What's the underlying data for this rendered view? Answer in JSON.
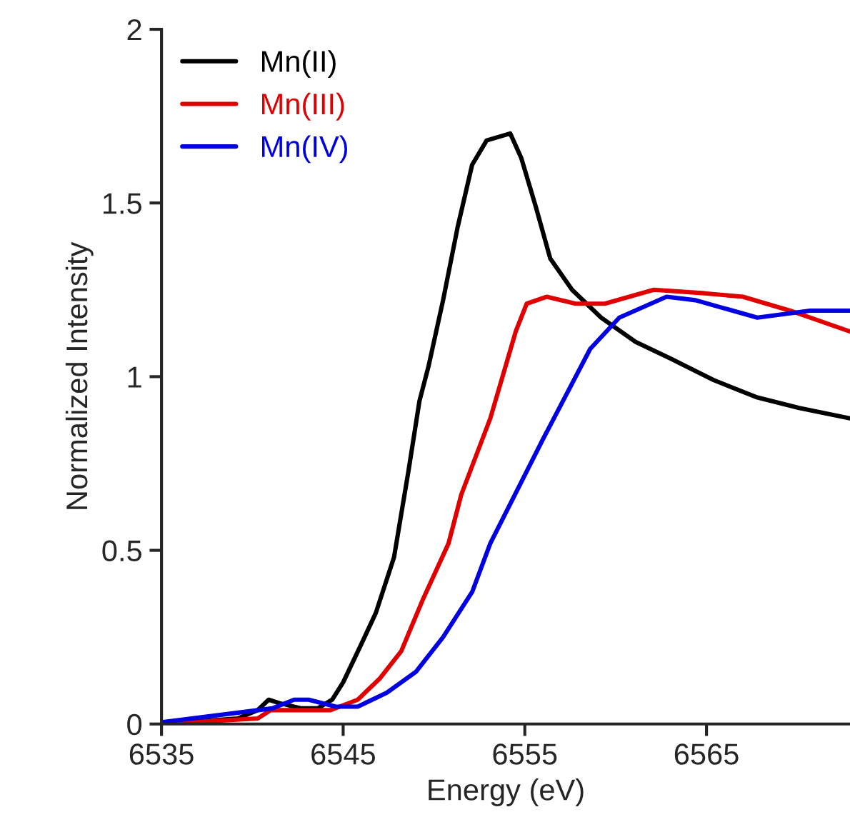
{
  "chart_data": {
    "type": "line",
    "xlabel": "Energy (eV)",
    "ylabel": "Normalized Intensity",
    "xlim": [
      6535,
      6572.9
    ],
    "xticks": [
      6535,
      6545,
      6555,
      6565
    ],
    "ylim": [
      0,
      2
    ],
    "yticks": [
      0,
      0.5,
      1,
      1.5,
      2
    ],
    "grid": false,
    "legend": "top left",
    "marker": "none",
    "line_style": "solid",
    "series": [
      {
        "name": "Mn(II)",
        "color": "#000000",
        "x": [
          6535,
          6539.2,
          6540.3,
          6540.9,
          6541.5,
          6542.7,
          6543.6,
          6544.4,
          6545,
          6546,
          6546.8,
          6547.8,
          6548.6,
          6549.2,
          6549.7,
          6550.5,
          6551.3,
          6552.1,
          6552.9,
          6554.2,
          6554.8,
          6555.6,
          6556.4,
          6557.6,
          6559.2,
          6561.1,
          6563.1,
          6565.4,
          6567.8,
          6570.1,
          6572.9
        ],
        "values": [
          0.0,
          0.016,
          0.04,
          0.07,
          0.06,
          0.045,
          0.045,
          0.07,
          0.12,
          0.23,
          0.32,
          0.48,
          0.73,
          0.93,
          1.03,
          1.22,
          1.43,
          1.61,
          1.68,
          1.7,
          1.63,
          1.49,
          1.34,
          1.25,
          1.17,
          1.1,
          1.05,
          0.99,
          0.94,
          0.91,
          0.88
        ]
      },
      {
        "name": "Mn(III)",
        "color": "#e00000",
        "x": [
          6535,
          6540.3,
          6541,
          6544.3,
          6545.8,
          6547,
          6548.2,
          6549.4,
          6550.8,
          6551.5,
          6553.1,
          6554.5,
          6555.1,
          6556.2,
          6557.8,
          6559.4,
          6562.1,
          6564.9,
          6567,
          6569.6,
          6572.9
        ],
        "values": [
          0.0,
          0.016,
          0.04,
          0.04,
          0.07,
          0.13,
          0.21,
          0.36,
          0.52,
          0.66,
          0.88,
          1.13,
          1.21,
          1.23,
          1.21,
          1.21,
          1.25,
          1.24,
          1.23,
          1.19,
          1.13
        ]
      },
      {
        "name": "Mn(IV)",
        "color": "#0000e0",
        "x": [
          6535,
          6541.1,
          6542.3,
          6543.1,
          6544.6,
          6545.8,
          6547.4,
          6549,
          6550.5,
          6552.1,
          6553.1,
          6556,
          6558.6,
          6560.2,
          6562.8,
          6564.4,
          6567.8,
          6570.7,
          6572.9
        ],
        "values": [
          0.005,
          0.045,
          0.07,
          0.07,
          0.05,
          0.05,
          0.09,
          0.15,
          0.25,
          0.38,
          0.52,
          0.82,
          1.08,
          1.17,
          1.23,
          1.22,
          1.17,
          1.19,
          1.19
        ]
      }
    ]
  }
}
